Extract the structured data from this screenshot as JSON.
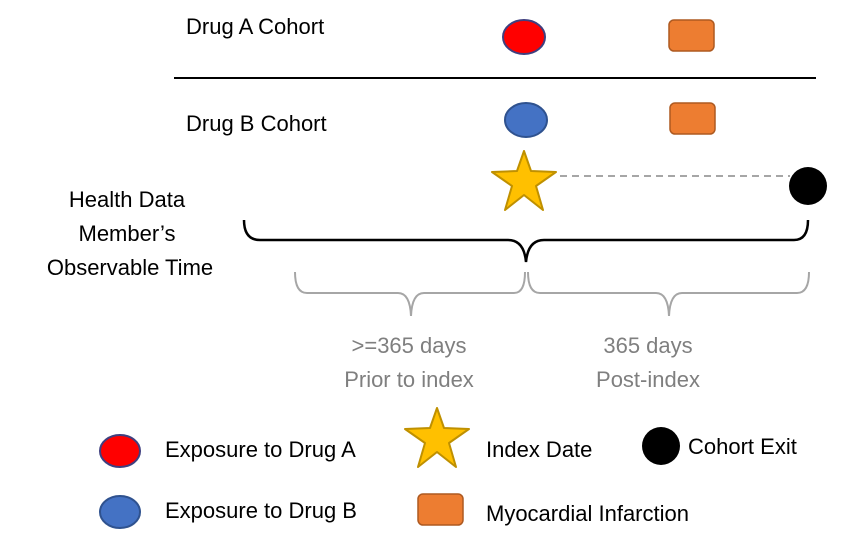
{
  "cohorts": {
    "drug_a": {
      "label": "Drug A Cohort"
    },
    "drug_b": {
      "label": "Drug B Cohort"
    }
  },
  "observable_time": {
    "lines": [
      "Health Data",
      "Member’s",
      "Observable Time"
    ]
  },
  "windows": {
    "prior": {
      "lines": [
        ">=365 days",
        "Prior to index"
      ]
    },
    "post": {
      "lines": [
        "365 days",
        "Post-index"
      ]
    }
  },
  "legend": {
    "drug_a_exposure": "Exposure to Drug A",
    "drug_b_exposure": "Exposure to Drug B",
    "index_date": "Index Date",
    "myocardial_infarction": "Myocardial Infarction",
    "cohort_exit": "Cohort Exit"
  },
  "colors": {
    "drug_a": "#ff0000",
    "drug_a_stroke": "#3f3f7f",
    "drug_b": "#4472c4",
    "drug_b_stroke": "#2f528f",
    "mi": "#ed7d31",
    "mi_stroke": "#ae5a21",
    "index_star": "#ffc000",
    "index_star_stroke": "#bf9000",
    "exit": "#000000",
    "bracket_main": "#000000",
    "bracket_window": "#a6a6a6",
    "dashed_line": "#a6a6a6",
    "window_text": "#7f7f7f"
  },
  "icons": {
    "drug_a": "red-circle-icon",
    "drug_b": "blue-circle-icon",
    "mi": "orange-rounded-square-icon",
    "index": "star-icon",
    "exit": "black-circle-icon"
  }
}
